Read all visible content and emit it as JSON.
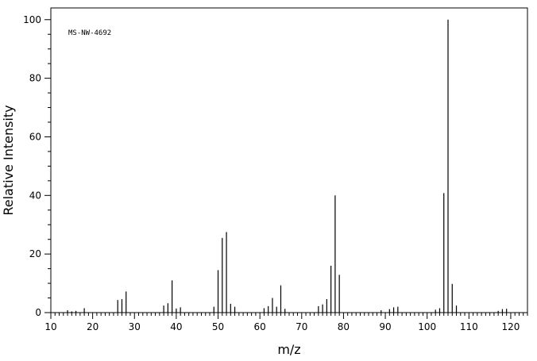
{
  "chart_data": {
    "type": "bar",
    "style": "stick-spectrum",
    "annotation": "MS-NW-4692",
    "xlabel": "m/z",
    "ylabel": "Relative Intensity",
    "xlim": [
      10,
      124
    ],
    "ylim": [
      0,
      104
    ],
    "x_ticks": [
      10,
      20,
      30,
      40,
      50,
      60,
      70,
      80,
      90,
      100,
      110,
      120
    ],
    "y_ticks": [
      0,
      20,
      40,
      60,
      80,
      100
    ],
    "grid": false,
    "legend": "none",
    "bar_color": "#000000",
    "series": [
      {
        "x": [
          14,
          15,
          16,
          18,
          26,
          27,
          28,
          37,
          38,
          39,
          40,
          41,
          49,
          50,
          51,
          52,
          53,
          54,
          61,
          62,
          63,
          64,
          65,
          66,
          74,
          75,
          76,
          77,
          78,
          79,
          89,
          91,
          92,
          93,
          102,
          103,
          104,
          105,
          106,
          107,
          117,
          118,
          119
        ],
        "y": [
          0.8,
          0.4,
          0.6,
          1.5,
          4.3,
          4.6,
          7.2,
          2.4,
          3.2,
          11.0,
          1.4,
          1.8,
          2.0,
          14.5,
          25.5,
          27.5,
          3.0,
          2.0,
          1.5,
          2.2,
          5.0,
          2.0,
          9.3,
          1.3,
          2.2,
          2.8,
          4.6,
          16.0,
          40.0,
          12.9,
          0.8,
          1.2,
          1.8,
          2.0,
          1.0,
          1.5,
          40.8,
          100,
          9.8,
          2.4,
          0.6,
          1.2,
          1.3
        ]
      }
    ]
  }
}
